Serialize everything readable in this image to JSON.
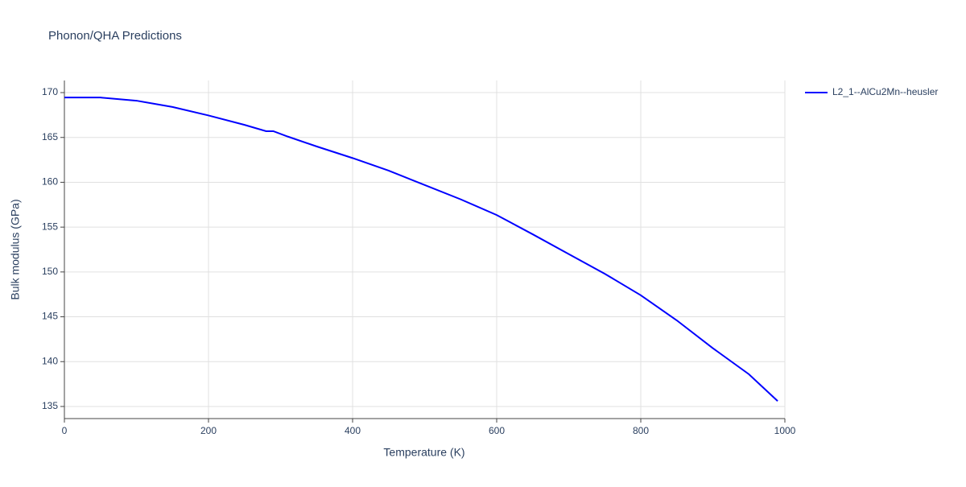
{
  "chart_data": {
    "type": "line",
    "title": "Phonon/QHA Predictions",
    "x_label": "Temperature (K)",
    "y_label": "Bulk modulus (GPa)",
    "x": [
      0,
      50,
      100,
      150,
      200,
      250,
      280,
      290,
      310,
      350,
      400,
      450,
      500,
      550,
      600,
      650,
      700,
      750,
      800,
      850,
      900,
      950,
      990
    ],
    "series": [
      {
        "name": "L2_1--AlCu2Mn--heusler",
        "color": "#0000ff",
        "values": [
          169.45,
          169.45,
          169.1,
          168.4,
          167.45,
          166.4,
          165.7,
          165.7,
          165.1,
          164.0,
          162.7,
          161.3,
          159.7,
          158.1,
          156.35,
          154.2,
          152.0,
          149.8,
          147.4,
          144.6,
          141.5,
          138.6,
          135.6
        ]
      }
    ],
    "xlim": [
      0,
      1000
    ],
    "xticks": [
      0,
      200,
      400,
      600,
      800,
      1000
    ],
    "ylim": [
      133.65,
      171.35
    ],
    "yticks": [
      135,
      140,
      145,
      150,
      155,
      160,
      165,
      170
    ],
    "grid": true,
    "legend": "right"
  }
}
